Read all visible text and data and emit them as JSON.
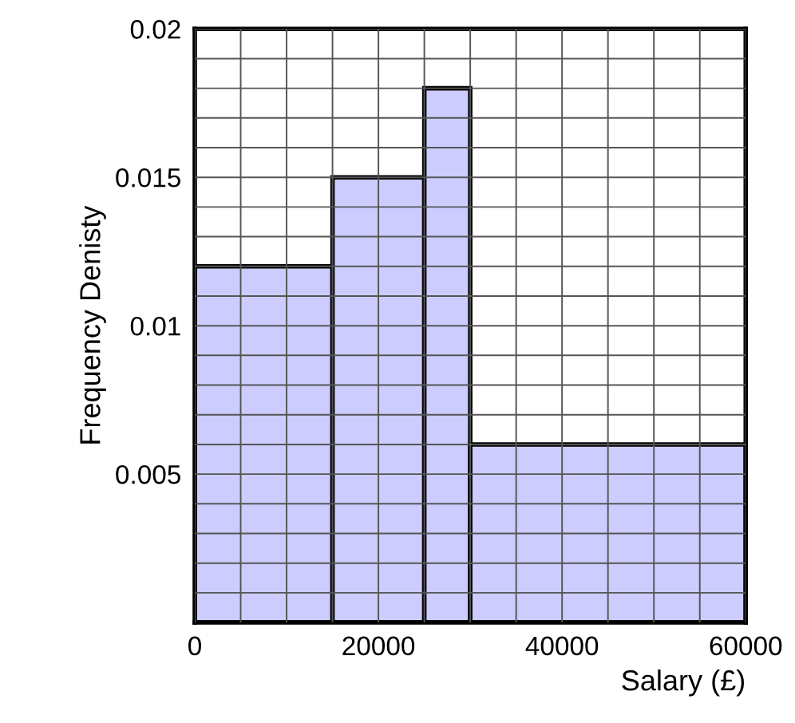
{
  "chart_data": {
    "type": "histogram",
    "xlabel": "Salary (£)",
    "ylabel": "Frequency Denisty",
    "bins": [
      0,
      15000,
      25000,
      30000,
      60000
    ],
    "values": [
      0.012,
      0.015,
      0.018,
      0.006
    ],
    "color": "#ccccff",
    "xlim": [
      0,
      60000
    ],
    "ylim": [
      0,
      0.02
    ],
    "xticks": [
      0,
      {
        "value": 5000,
        "label": null
      },
      {
        "value": 10000,
        "label": null
      },
      {
        "value": 15000,
        "label": null
      },
      20000,
      {
        "value": 25000,
        "label": null
      },
      {
        "value": 30000,
        "label": null
      },
      {
        "value": 35000,
        "label": null
      },
      40000,
      {
        "value": 45000,
        "label": null
      },
      {
        "value": 50000,
        "label": null
      },
      {
        "value": 55000,
        "label": null
      },
      60000
    ],
    "yticks": [
      {
        "value": 0.001,
        "label": null
      },
      {
        "value": 0.002,
        "label": null
      },
      {
        "value": 0.003,
        "label": null
      },
      {
        "value": 0.004,
        "label": null
      },
      0.005,
      {
        "value": 0.006,
        "label": null
      },
      {
        "value": 0.007,
        "label": null
      },
      {
        "value": 0.008,
        "label": null
      },
      {
        "value": 0.009,
        "label": null
      },
      0.01,
      {
        "value": 0.011,
        "label": null
      },
      {
        "value": 0.012,
        "label": null
      },
      {
        "value": 0.013,
        "label": null
      },
      {
        "value": 0.014,
        "label": null
      },
      0.015,
      {
        "value": 0.016,
        "label": null
      },
      {
        "value": 0.017,
        "label": null
      },
      {
        "value": 0.018,
        "label": null
      },
      {
        "value": 0.019,
        "label": null
      },
      0.02
    ],
    "grid": true
  }
}
